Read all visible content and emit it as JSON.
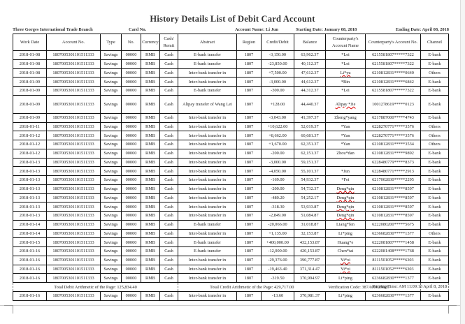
{
  "title": "History Details List of Debit Card Account",
  "info": {
    "branch": "Three Gorges International Trade Branch",
    "card_no": "Card No.",
    "account_name": "Account Name: Li Jun",
    "starting_date": "Starting Date: January 08, 2018",
    "ending_date": "Ending Date: April 08, 2018"
  },
  "headers": [
    "Work Date",
    "Account No.",
    "Type",
    "No.",
    "Currency",
    "Cash/ Remit",
    "Abstract",
    "Region",
    "Credit/Debit",
    "Balance",
    "Counterparty's Account Name",
    "Counterparty's Account No.",
    "Channel"
  ],
  "rows": [
    [
      "2018-01-08",
      "1807005301101511333",
      "Savings",
      "00000",
      "RMB",
      "Cash",
      "E-bank transfer",
      "1807",
      "-3,150.00",
      "63,962.37",
      "*Lei",
      "6215581807*****7322",
      "E-bank"
    ],
    [
      "2018-01-08",
      "1807005301101511333",
      "Savings",
      "00000",
      "RMB",
      "Cash",
      "E-bank transfer",
      "1807",
      "-23,850.00",
      "40,112.37",
      "*Lei",
      "6215581807*****7322",
      "E-bank"
    ],
    [
      "2018-01-08",
      "1807005301101511333",
      "Savings",
      "00000",
      "RMB",
      "Cash",
      "Inter-bank transfer in",
      "1807",
      "+7,500.00",
      "47,612.37",
      "Li*yu",
      "6210812831*****0640",
      "Others"
    ],
    [
      "2018-01-09",
      "1807005301101511333",
      "Savings",
      "00000",
      "RMB",
      "Cash",
      "Inter-bank transfer in",
      "1807",
      "-3,000.00",
      "44,612.37",
      "*Bin",
      "6210812831*****6842",
      "E-bank"
    ],
    [
      "2018-01-09",
      "1807005301101511333",
      "Savings",
      "00000",
      "RMB",
      "Cash",
      "E-bank transfer",
      "1807",
      "-300.00",
      "44,312.37",
      "*Lei",
      "6215581807*****7322",
      "E-bank"
    ],
    [
      "2018-01-09",
      "1807005301101511333",
      "Savings",
      "00000",
      "RMB",
      "Cash",
      "Alipay transfer of Wang Lei",
      "1807",
      "+128.00",
      "44,440.37",
      "Alipay *Jie",
      "1001278619*****0123",
      "E-bank"
    ],
    [
      "2018-01-09",
      "1807005301101511333",
      "Savings",
      "00000",
      "RMB",
      "Cash",
      "Inter-bank transfer in",
      "1807",
      "-3,043.00",
      "41,397.37",
      "Zheng*yang",
      "6217887000*****4743",
      "E-bank"
    ],
    [
      "2018-01-11",
      "1807005301101511333",
      "Savings",
      "00000",
      "RMB",
      "Cash",
      "Inter-bank transfer in",
      "1807",
      "+10,622.00",
      "52,019.37",
      "*Yan",
      "6228270771*****3576",
      "Others"
    ],
    [
      "2018-01-12",
      "1807005301101511333",
      "Savings",
      "00000",
      "RMB",
      "Cash",
      "Inter-bank transfer in",
      "1807",
      "+8,662.00",
      "60,681.37",
      "*Yan",
      "6228270771*****3576",
      "Others"
    ],
    [
      "2018-01-12",
      "1807005301101511333",
      "Savings",
      "00000",
      "RMB",
      "Cash",
      "Inter-bank transfer in",
      "1807",
      "+1,670.00",
      "62,351.37",
      "*Yan",
      "6210812831*****3534",
      "Others"
    ],
    [
      "2018-01-12",
      "1807005301101511333",
      "Savings",
      "00000",
      "RMB",
      "Cash",
      "Inter-bank transfer in",
      "1807",
      "-200.00",
      "62,151.37",
      "Zhou*dan",
      "6210812831*****9892",
      "E-bank"
    ],
    [
      "2018-01-13",
      "1807005301101511333",
      "Savings",
      "00000",
      "RMB",
      "Cash",
      "Inter-bank transfer in",
      "1807",
      "-3,000.00",
      "59,151.37",
      "",
      "6228480779*****8373",
      "E-bank"
    ],
    [
      "2018-01-13",
      "1807005301101511333",
      "Savings",
      "00000",
      "RMB",
      "Cash",
      "Inter-bank transfer in",
      "1807",
      "-4,050.00",
      "55,101.37",
      "*Jun",
      "6228480771*****2913",
      "E-bank"
    ],
    [
      "2018-01-13",
      "1807005301101511333",
      "Savings",
      "00000",
      "RMB",
      "Cash",
      "Inter-bank transfer in",
      "1807",
      "-169.00",
      "54,932.37",
      "*Fei",
      "6217002830*****2295",
      "E-bank"
    ],
    [
      "2018-01-13",
      "1807005301101511333",
      "Savings",
      "00000",
      "RMB",
      "Cash",
      "Inter-bank transfer in",
      "1807",
      "-200.00",
      "54,732.37",
      "Deng*qin",
      "6210812831*****8597",
      "E-bank"
    ],
    [
      "2018-01-13",
      "1807005301101511333",
      "Savings",
      "00000",
      "RMB",
      "Cash",
      "Inter-bank transfer in",
      "1807",
      "-480.20",
      "54,252.17",
      "Deng*qin",
      "6210812831*****8597",
      "E-bank"
    ],
    [
      "2018-01-13",
      "1807005301101511333",
      "Savings",
      "00000",
      "RMB",
      "Cash",
      "Inter-bank transfer in",
      "1807",
      "-318.30",
      "53,933.87",
      "Deng*qin",
      "6210812831*****8597",
      "E-bank"
    ],
    [
      "2018-01-13",
      "1807005301101511333",
      "Savings",
      "00000",
      "RMB",
      "Cash",
      "Inter-bank transfer in",
      "1807",
      "-2,849.00",
      "51,084.87",
      "Deng*qin",
      "6210812831*****8597",
      "E-bank"
    ],
    [
      "2018-01-14",
      "1807005301101511333",
      "Savings",
      "00000",
      "RMB",
      "Cash",
      "E-bank transfer",
      "1807",
      "-20,066.00",
      "31,018.87",
      "Liang*fen",
      "6222080200*****5675",
      "E-bank"
    ],
    [
      "2018-01-14",
      "1807005301101511333",
      "Savings",
      "00000",
      "RMB",
      "Cash",
      "Inter-bank transfer in",
      "1807",
      "+1,135.00",
      "32,153.87",
      "Li*ping",
      "6236682830*****1377",
      "Others"
    ],
    [
      "2018-01-15",
      "1807005301101511333",
      "Savings",
      "00000",
      "RMB",
      "Cash",
      "E-bank transfer",
      "1807",
      "+400,000.00",
      "432,153.87",
      "Huang*e",
      "6222081807*****1458",
      "E-bank"
    ],
    [
      "2018-01-16",
      "1807005301101511333",
      "Savings",
      "00000",
      "RMB",
      "Cash",
      "E-bank transfer",
      "1807",
      "-12,000.00",
      "420,153.87",
      "Chen*tai",
      "6222081408*****1768",
      "E-bank"
    ],
    [
      "2018-01-16",
      "1807005301101511333",
      "Savings",
      "00000",
      "RMB",
      "Cash",
      "Inter-bank transfer in",
      "1807",
      "-29,376.00",
      "390,777.87",
      "Yi*xi",
      "8111501052*****6303",
      "E-bank"
    ],
    [
      "2018-01-16",
      "1807005301101511333",
      "Savings",
      "00000",
      "RMB",
      "Cash",
      "Inter-bank transfer in",
      "1807",
      "-19,463.40",
      "371,314.47",
      "Yi*xi",
      "8111501052*****6303",
      "E-bank"
    ],
    [
      "2018-01-16",
      "1807005301101511333",
      "Savings",
      "00000",
      "RMB",
      "Cash",
      "Inter-bank transfer in",
      "1807",
      "-319.50",
      "370,994.97",
      "Li*ping",
      "6236682830*****1377",
      "E-bank"
    ]
  ],
  "summary": {
    "total_debit": "Total Debit Arithmetic of the Page: 125,834.40",
    "total_credit": "Total Credit Arithmetic of the Page: 429,717.00",
    "verification": "Verification Code: 387A00625026",
    "printing_time": "Printing Time: AM 11:09:13 April 8, 2018"
  },
  "last_row": [
    "2018-01-16",
    "1807005301101511333",
    "Savings",
    "00000",
    "RMB",
    "Cash",
    "Inter-bank transfer in",
    "1807",
    "-13.60",
    "370,981.37",
    "Li*ping",
    "6236682830*****1377",
    "E-bank"
  ]
}
